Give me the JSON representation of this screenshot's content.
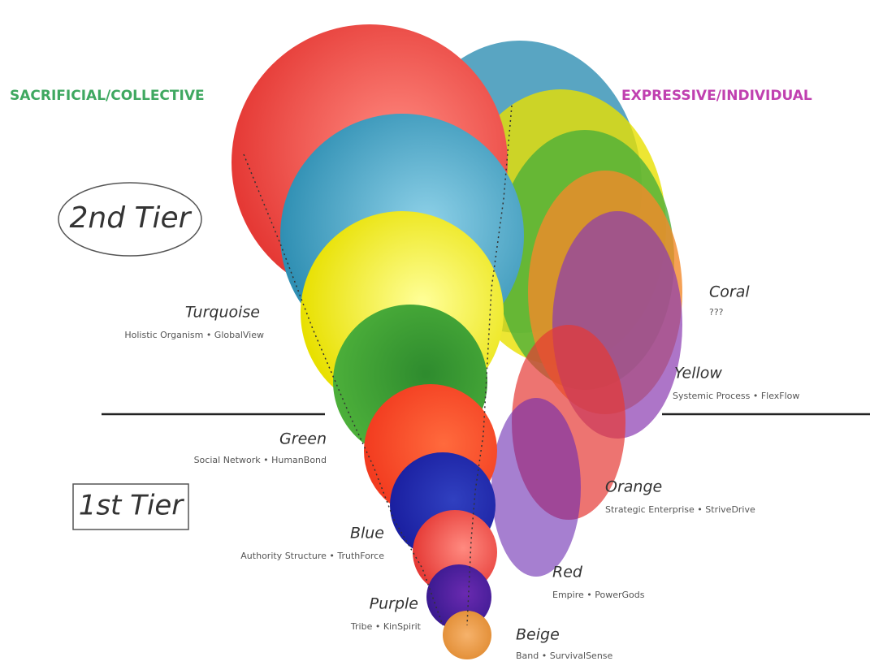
{
  "headings": {
    "left": "SACRIFICIAL/COLLECTIVE",
    "right": "EXPRESSIVE/INDIVIDUAL"
  },
  "tiers": {
    "second": "2nd Tier",
    "first": "1st Tier"
  },
  "levels": [
    {
      "name": "Coral",
      "description": "???"
    },
    {
      "name": "Yellow",
      "description": "Systemic Process • FlexFlow"
    },
    {
      "name": "Turquoise",
      "description": "Holistic Organism • GlobalView"
    },
    {
      "name": "Green",
      "description": "Social Network • HumanBond"
    },
    {
      "name": "Orange",
      "description": "Strategic Enterprise • StriveDrive"
    },
    {
      "name": "Blue",
      "description": "Authority Structure • TruthForce"
    },
    {
      "name": "Red",
      "description": "Empire • PowerGods"
    },
    {
      "name": "Purple",
      "description": "Tribe • KinSpirit"
    },
    {
      "name": "Beige",
      "description": "Band • SurvivalSense"
    }
  ]
}
